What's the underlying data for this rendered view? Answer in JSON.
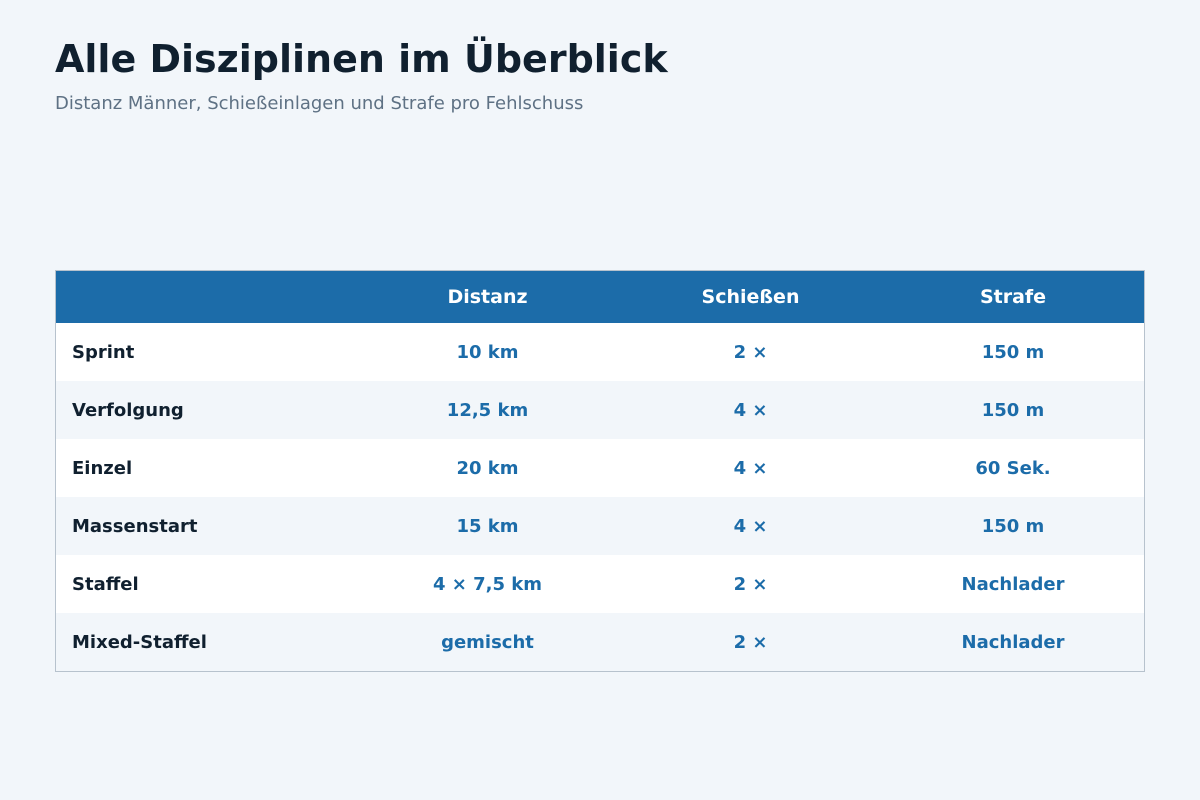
{
  "title": "Alle Disziplinen im Überblick",
  "subtitle": "Distanz Männer, Schießeinlagen und Strafe pro Fehlschuss",
  "chart_data": {
    "type": "table",
    "columns": [
      "",
      "Distanz",
      "Schießen",
      "Strafe"
    ],
    "rows": [
      [
        "Sprint",
        "10 km",
        "2 ×",
        "150 m"
      ],
      [
        "Verfolgung",
        "12,5 km",
        "4 ×",
        "150 m"
      ],
      [
        "Einzel",
        "20 km",
        "4 ×",
        "60 Sek."
      ],
      [
        "Massenstart",
        "15 km",
        "4 ×",
        "150 m"
      ],
      [
        "Staffel",
        "4 × 7,5 km",
        "2 ×",
        "Nachlader"
      ],
      [
        "Mixed-Staffel",
        "gemischt",
        "2 ×",
        "Nachlader"
      ]
    ]
  },
  "colors": {
    "header_bg": "#1c6ca9",
    "value_text": "#1c6ca9",
    "name_text": "#10202f",
    "stripe": "#f2f6fa"
  }
}
